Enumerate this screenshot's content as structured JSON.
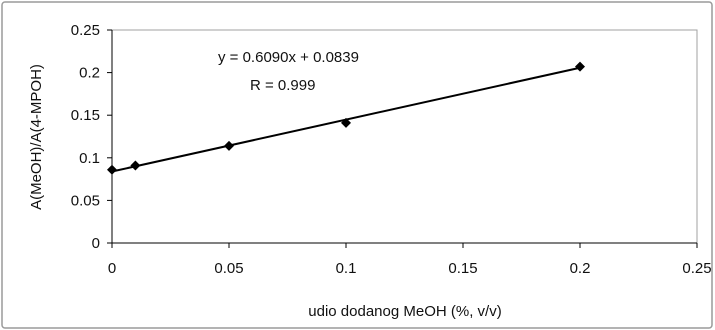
{
  "chart_data": {
    "type": "scatter",
    "title": "",
    "xlabel": "udio dodanog MeOH (%, v/v)",
    "ylabel": "A(MeOH)/A(4-MPOH)",
    "xlim": [
      0,
      0.25
    ],
    "ylim": [
      0,
      0.25
    ],
    "x_ticks": [
      "0",
      "0.05",
      "0.1",
      "0.15",
      "0.2",
      "0.25"
    ],
    "y_ticks": [
      "0",
      "0.05",
      "0.1",
      "0.15",
      "0.2",
      "0.25"
    ],
    "grid": "none",
    "legend": "none",
    "series": [
      {
        "x": [
          0,
          0.01,
          0.05,
          0.1,
          0.2
        ],
        "y": [
          0.086,
          0.091,
          0.114,
          0.141,
          0.207
        ],
        "marker": "diamond"
      }
    ],
    "trendline": {
      "slope": 0.609,
      "intercept": 0.0839,
      "x_range": [
        0,
        0.2
      ]
    },
    "annotations": {
      "equation": "y = 0.6090x + 0.0839",
      "r_value": "R = 0.999"
    }
  }
}
